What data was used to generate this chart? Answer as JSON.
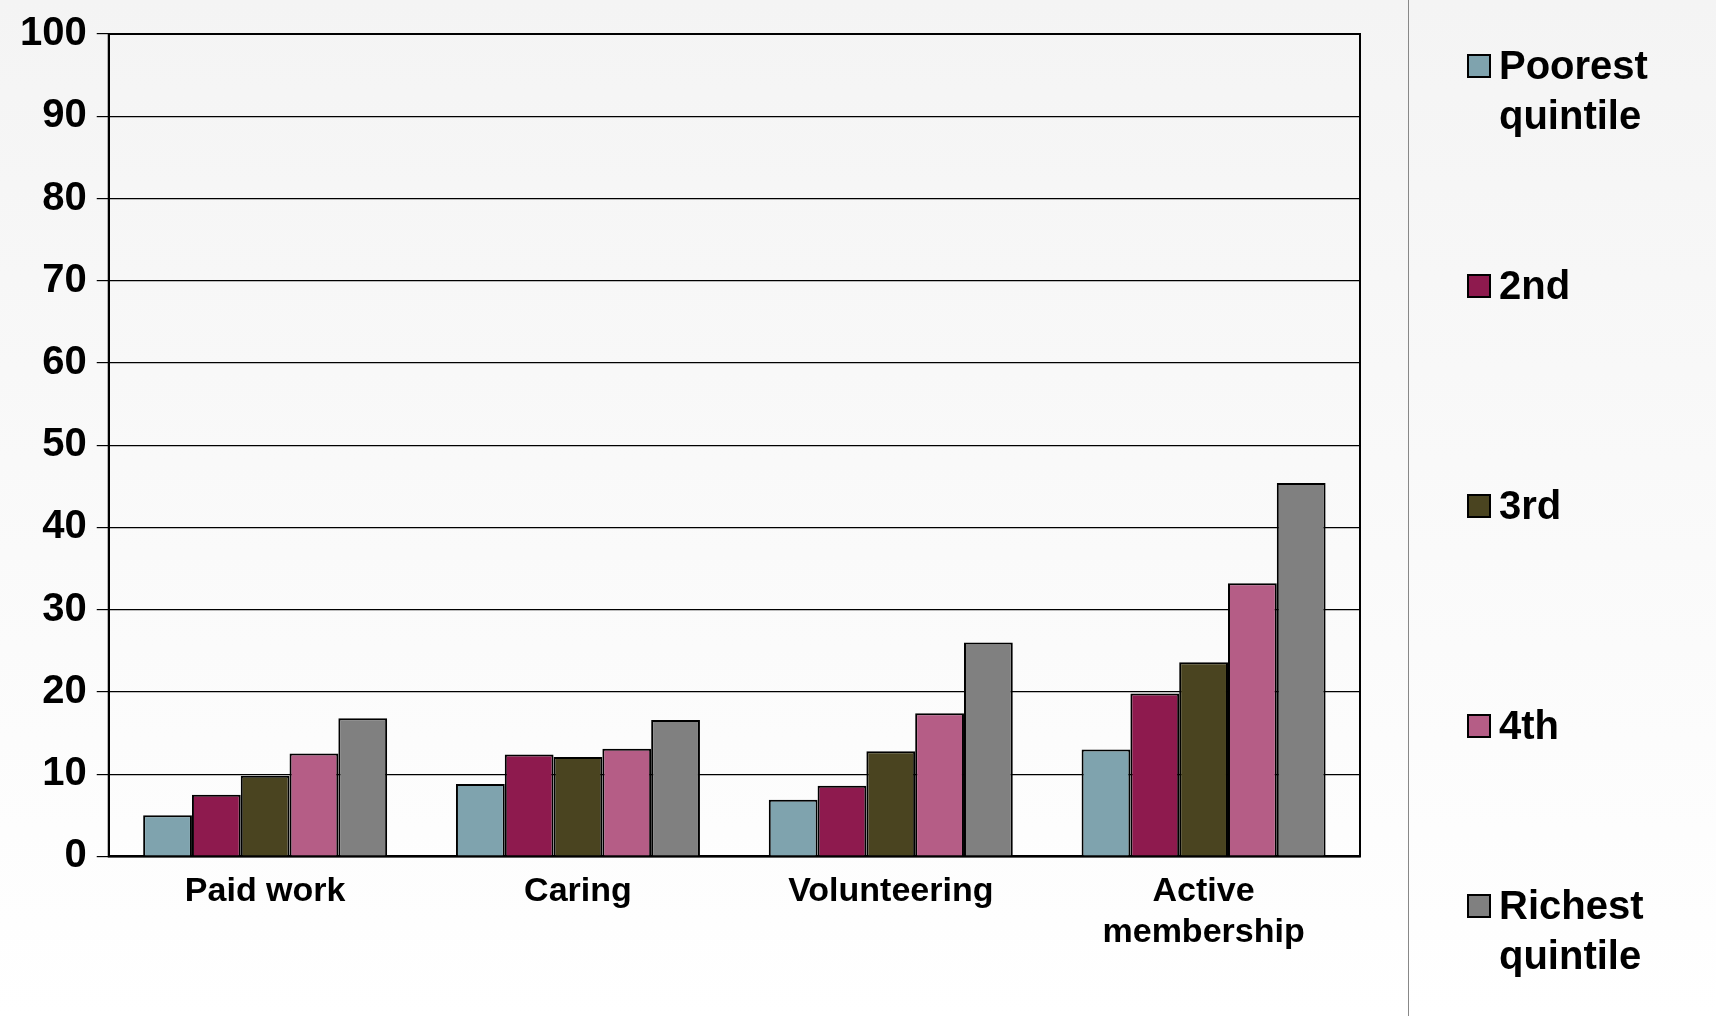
{
  "chart_data": {
    "type": "bar",
    "categories": [
      "Paid work",
      "Caring",
      "Volunteering",
      "Active membership"
    ],
    "series": [
      {
        "name": "Poorest quintile",
        "color": "#7fa3ae",
        "values": [
          5,
          8.8,
          6.9,
          13
        ]
      },
      {
        "name": "2nd",
        "color": "#8e1a4e",
        "values": [
          7.5,
          12.4,
          8.6,
          19.8
        ]
      },
      {
        "name": "3rd",
        "color": "#4a4420",
        "values": [
          9.8,
          12.1,
          12.8,
          23.6
        ]
      },
      {
        "name": "4th",
        "color": "#b55d86",
        "values": [
          12.5,
          13.1,
          17.4,
          33.2
        ]
      },
      {
        "name": "Richest quintile",
        "color": "#808080",
        "values": [
          16.8,
          16.6,
          26,
          45.4
        ]
      }
    ],
    "ylim": [
      0,
      100
    ],
    "yticks": [
      0,
      10,
      20,
      30,
      40,
      50,
      60,
      70,
      80,
      90,
      100
    ],
    "grid": "y",
    "legend": "right"
  }
}
